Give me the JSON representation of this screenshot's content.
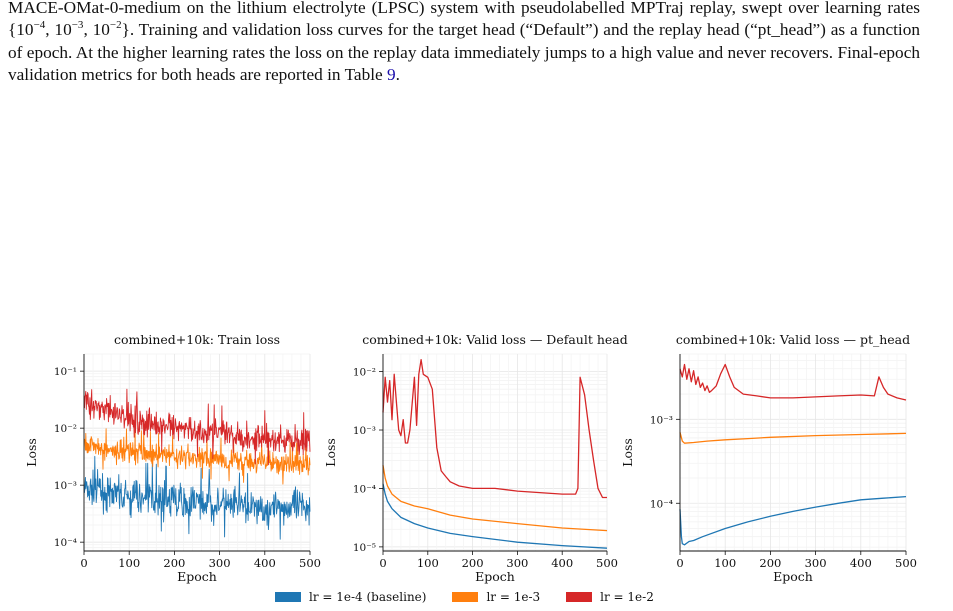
{
  "caption": {
    "line1_a": "MACE-OMat-0-medium on the lithium electrolyte (LPSC) system with pseudolabelled MPTraj replay, swept",
    "line2_pre": "over learning rates {10",
    "lr_exp": [
      "−4",
      "−3",
      "−2"
    ],
    "line2_post": "}. Training and validation loss curves for the target head (“Default”)",
    "line3": "and the replay head (“pt_head”) as a function of epoch. At the higher learning rates the loss on the replay",
    "line4": "data immediately jumps to a high value and never recovers. Final-epoch validation metrics for both heads",
    "line5_pre": "are reported in Table ",
    "table_ref": "9",
    "line5_post": "."
  },
  "colors": {
    "lr_1e4": "#1f77b4",
    "lr_1e3": "#ff7f0e",
    "lr_1e2": "#d62728"
  },
  "chart_data": [
    {
      "type": "line",
      "title": "combined+10k: Train loss",
      "xlabel": "Epoch",
      "ylabel": "Loss",
      "yscale": "log",
      "xlim": [
        0,
        500
      ],
      "ylim": [
        7e-05,
        0.2
      ],
      "xticks": [
        "0",
        "100",
        "200",
        "300",
        "400",
        "500"
      ],
      "yticks": [
        "10⁻⁴",
        "10⁻³",
        "10⁻²",
        "10⁻¹"
      ],
      "noisy": true,
      "series": [
        {
          "name": "lr = 1e-4 (baseline)",
          "color": "#1f77b4",
          "x": [
            0,
            50,
            100,
            150,
            200,
            250,
            300,
            350,
            400,
            450,
            500
          ],
          "values": [
            0.0009,
            0.0007,
            0.0006,
            0.0006,
            0.0005,
            0.0005,
            0.00045,
            0.0004,
            0.0004,
            0.0004,
            0.0004
          ],
          "noise": 0.55
        },
        {
          "name": "lr = 1e-3",
          "color": "#ff7f0e",
          "x": [
            0,
            50,
            100,
            150,
            200,
            250,
            300,
            350,
            400,
            450,
            500
          ],
          "values": [
            0.006,
            0.004,
            0.004,
            0.0035,
            0.003,
            0.003,
            0.0028,
            0.0025,
            0.0025,
            0.0023,
            0.0022
          ],
          "noise": 0.35
        },
        {
          "name": "lr = 1e-2",
          "color": "#d62728",
          "x": [
            0,
            50,
            100,
            150,
            200,
            250,
            300,
            350,
            400,
            450,
            500
          ],
          "values": [
            0.03,
            0.02,
            0.015,
            0.012,
            0.01,
            0.009,
            0.008,
            0.007,
            0.0065,
            0.006,
            0.006
          ],
          "noise": 0.45
        }
      ]
    },
    {
      "type": "line",
      "title": "combined+10k: Valid loss — Default head",
      "xlabel": "Epoch",
      "ylabel": "Loss",
      "yscale": "log",
      "xlim": [
        0,
        500
      ],
      "ylim": [
        8.5e-06,
        0.02
      ],
      "xticks": [
        "0",
        "100",
        "200",
        "300",
        "400",
        "500"
      ],
      "yticks": [
        "10⁻⁵",
        "10⁻⁴",
        "10⁻³",
        "10⁻²"
      ],
      "series": [
        {
          "name": "lr = 1e-4 (baseline)",
          "color": "#1f77b4",
          "x": [
            0,
            5,
            10,
            20,
            40,
            70,
            100,
            150,
            200,
            300,
            400,
            500
          ],
          "values": [
            0.00012,
            8e-05,
            6e-05,
            4.5e-05,
            3.2e-05,
            2.5e-05,
            2.1e-05,
            1.7e-05,
            1.5e-05,
            1.2e-05,
            1.05e-05,
            9.5e-06
          ]
        },
        {
          "name": "lr = 1e-3",
          "color": "#ff7f0e",
          "x": [
            0,
            5,
            10,
            20,
            40,
            70,
            100,
            150,
            200,
            300,
            400,
            500
          ],
          "values": [
            0.00025,
            0.00015,
            0.00011,
            8e-05,
            6e-05,
            5e-05,
            4.5e-05,
            3.5e-05,
            3e-05,
            2.5e-05,
            2.1e-05,
            1.9e-05
          ]
        },
        {
          "name": "lr = 1e-2",
          "color": "#d62728",
          "x": [
            0,
            5,
            10,
            15,
            20,
            25,
            30,
            35,
            40,
            45,
            50,
            55,
            60,
            70,
            75,
            80,
            85,
            90,
            100,
            110,
            120,
            130,
            140,
            150,
            170,
            200,
            250,
            300,
            350,
            400,
            430,
            435,
            440,
            450,
            460,
            470,
            480,
            490,
            500
          ],
          "values": [
            0.002,
            0.008,
            0.003,
            0.007,
            0.0015,
            0.009,
            0.003,
            0.001,
            0.0008,
            0.0015,
            0.0006,
            0.0006,
            0.001,
            0.008,
            0.0012,
            0.009,
            0.016,
            0.009,
            0.008,
            0.005,
            0.0005,
            0.0002,
            0.00016,
            0.00013,
            0.00011,
            0.0001,
            0.0001,
            9e-05,
            8.5e-05,
            8e-05,
            8e-05,
            0.0001,
            0.008,
            0.004,
            0.001,
            0.0003,
            0.0001,
            7e-05,
            7e-05
          ]
        }
      ]
    },
    {
      "type": "line",
      "title": "combined+10k: Valid loss — pt_head",
      "xlabel": "Epoch",
      "ylabel": "Loss",
      "yscale": "log",
      "xlim": [
        0,
        500
      ],
      "ylim": [
        2.7e-05,
        0.006
      ],
      "xticks": [
        "0",
        "100",
        "200",
        "300",
        "400",
        "500"
      ],
      "yticks": [
        "10⁻⁴",
        "10⁻³"
      ],
      "series": [
        {
          "name": "lr = 1e-4 (baseline)",
          "color": "#1f77b4",
          "x": [
            0,
            3,
            5,
            10,
            20,
            30,
            50,
            100,
            150,
            200,
            250,
            300,
            350,
            400,
            450,
            500
          ],
          "values": [
            8.5e-05,
            4e-05,
            3.3e-05,
            3.2e-05,
            3.5e-05,
            3.6e-05,
            4e-05,
            5e-05,
            6e-05,
            7e-05,
            8e-05,
            9e-05,
            0.0001,
            0.00011,
            0.000115,
            0.00012
          ]
        },
        {
          "name": "lr = 1e-3",
          "color": "#ff7f0e",
          "x": [
            0,
            5,
            10,
            30,
            60,
            100,
            150,
            200,
            300,
            400,
            500
          ],
          "values": [
            0.0007,
            0.00055,
            0.00052,
            0.00053,
            0.00055,
            0.00057,
            0.00059,
            0.00061,
            0.00064,
            0.00066,
            0.00068
          ]
        },
        {
          "name": "lr = 1e-2",
          "color": "#d62728",
          "x": [
            0,
            5,
            10,
            15,
            20,
            25,
            30,
            35,
            40,
            45,
            50,
            55,
            60,
            65,
            70,
            80,
            90,
            100,
            110,
            120,
            140,
            170,
            200,
            250,
            300,
            350,
            400,
            430,
            440,
            450,
            460,
            480,
            500
          ],
          "values": [
            0.004,
            0.0032,
            0.0045,
            0.003,
            0.004,
            0.0028,
            0.0038,
            0.0026,
            0.0032,
            0.0024,
            0.0027,
            0.0022,
            0.0025,
            0.0021,
            0.0022,
            0.0025,
            0.0035,
            0.0045,
            0.0032,
            0.0024,
            0.002,
            0.0019,
            0.0018,
            0.0018,
            0.00185,
            0.0019,
            0.00195,
            0.0019,
            0.0032,
            0.0024,
            0.002,
            0.0018,
            0.0017
          ]
        }
      ]
    }
  ],
  "legend": [
    {
      "label": "lr = 1e-4 (baseline)",
      "color": "#1f77b4"
    },
    {
      "label": "lr = 1e-3",
      "color": "#ff7f0e"
    },
    {
      "label": "lr = 1e-2",
      "color": "#d62728"
    }
  ]
}
